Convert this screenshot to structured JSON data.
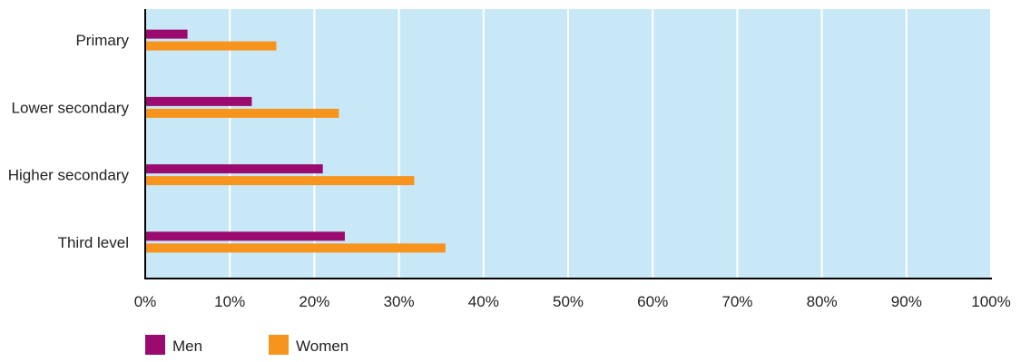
{
  "chart_data": {
    "type": "bar",
    "orientation": "horizontal",
    "categories": [
      "Primary",
      "Lower secondary",
      "Higher secondary",
      "Third level"
    ],
    "series": [
      {
        "name": "Men",
        "values": [
          5.0,
          12.6,
          21.0,
          23.6
        ]
      },
      {
        "name": "Women",
        "values": [
          15.5,
          22.9,
          31.8,
          35.5
        ]
      }
    ],
    "xlim": [
      0,
      100
    ],
    "xticks": [
      "0%",
      "10%",
      "20%",
      "30%",
      "40%",
      "50%",
      "60%",
      "70%",
      "80%",
      "90%",
      "100%"
    ],
    "grid": true,
    "legend_position": "bottom-left",
    "colors": {
      "men": "#9b0a6e",
      "women": "#f7941d",
      "plot_background": "#c9e8f7",
      "gridline": "#ffffff",
      "axis": "#000000",
      "text": "#222222"
    }
  }
}
